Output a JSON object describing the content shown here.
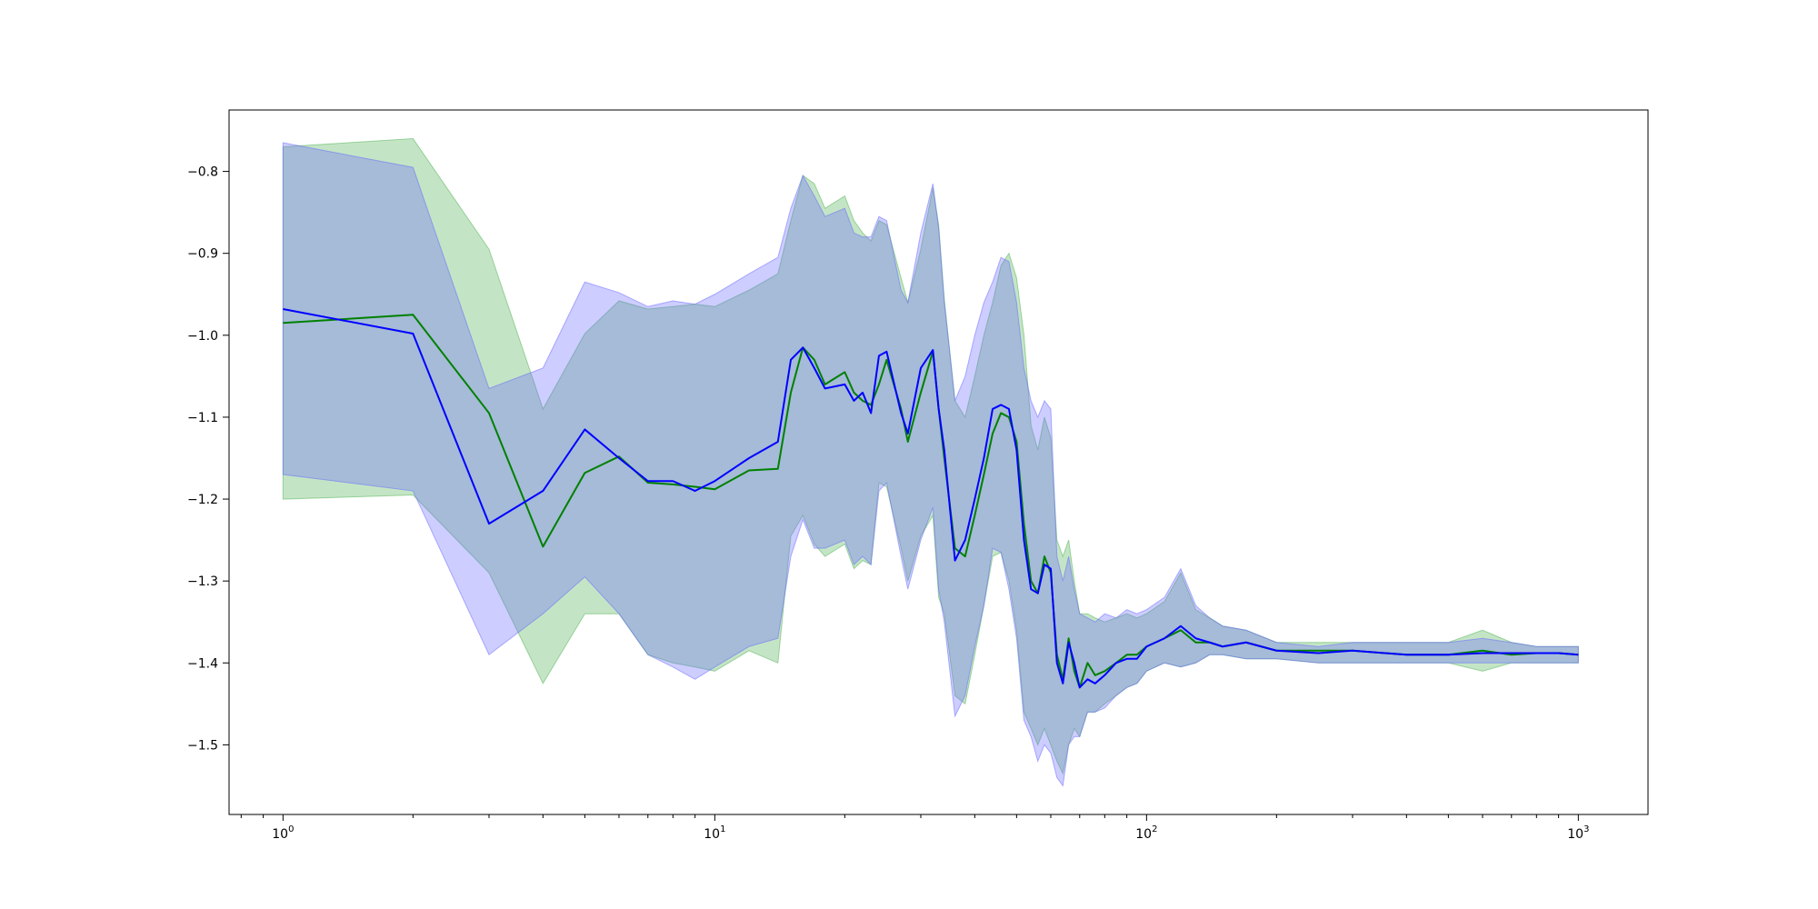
{
  "chart_data": {
    "type": "line",
    "title": "",
    "xlabel": "",
    "ylabel": "",
    "xscale": "log",
    "xlim": [
      0.75,
      1450
    ],
    "ylim": [
      -1.585,
      -0.725
    ],
    "grid": false,
    "legend": "none",
    "x_ticks": [
      {
        "base": "10",
        "exp": "0",
        "value": 1
      },
      {
        "base": "10",
        "exp": "1",
        "value": 10
      },
      {
        "base": "10",
        "exp": "2",
        "value": 100
      },
      {
        "base": "10",
        "exp": "3",
        "value": 1000
      }
    ],
    "y_ticks": [
      {
        "label": "−0.8",
        "value": -0.8
      },
      {
        "label": "−0.9",
        "value": -0.9
      },
      {
        "label": "−1.0",
        "value": -1.0
      },
      {
        "label": "−1.1",
        "value": -1.1
      },
      {
        "label": "−1.2",
        "value": -1.2
      },
      {
        "label": "−1.3",
        "value": -1.3
      },
      {
        "label": "−1.4",
        "value": -1.4
      },
      {
        "label": "−1.5",
        "value": -1.5
      }
    ],
    "series": [
      {
        "color": "#008000",
        "band_color": "#4caf50",
        "x": [
          1,
          2,
          3,
          4,
          5,
          6,
          7,
          8,
          9,
          10,
          12,
          14,
          15,
          16,
          17,
          18,
          20,
          21,
          22,
          23,
          24,
          25,
          27,
          28,
          30,
          32,
          33,
          34,
          36,
          38,
          40,
          42,
          44,
          46,
          48,
          50,
          52,
          54,
          56,
          58,
          60,
          62,
          64,
          66,
          68,
          70,
          73,
          76,
          80,
          85,
          90,
          95,
          100,
          110,
          120,
          130,
          140,
          150,
          170,
          200,
          250,
          300,
          400,
          500,
          600,
          700,
          800,
          900,
          1000
        ],
        "y": [
          -0.985,
          -0.975,
          -1.095,
          -1.258,
          -1.168,
          -1.148,
          -1.18,
          -1.182,
          -1.185,
          -1.188,
          -1.165,
          -1.163,
          -1.07,
          -1.015,
          -1.03,
          -1.06,
          -1.045,
          -1.07,
          -1.08,
          -1.085,
          -1.06,
          -1.03,
          -1.09,
          -1.13,
          -1.07,
          -1.02,
          -1.09,
          -1.15,
          -1.26,
          -1.27,
          -1.22,
          -1.17,
          -1.12,
          -1.095,
          -1.1,
          -1.13,
          -1.23,
          -1.3,
          -1.315,
          -1.27,
          -1.29,
          -1.39,
          -1.42,
          -1.37,
          -1.41,
          -1.43,
          -1.4,
          -1.415,
          -1.41,
          -1.4,
          -1.39,
          -1.39,
          -1.38,
          -1.37,
          -1.36,
          -1.375,
          -1.375,
          -1.38,
          -1.375,
          -1.385,
          -1.385,
          -1.385,
          -1.39,
          -1.39,
          -1.385,
          -1.39,
          -1.388,
          -1.388,
          -1.39
        ],
        "lower": [
          -1.2,
          -1.195,
          -1.29,
          -1.425,
          -1.34,
          -1.34,
          -1.39,
          -1.4,
          -1.405,
          -1.41,
          -1.385,
          -1.4,
          -1.245,
          -1.22,
          -1.255,
          -1.27,
          -1.255,
          -1.285,
          -1.275,
          -1.28,
          -1.18,
          -1.185,
          -1.26,
          -1.3,
          -1.245,
          -1.22,
          -1.32,
          -1.34,
          -1.44,
          -1.45,
          -1.39,
          -1.33,
          -1.27,
          -1.265,
          -1.3,
          -1.36,
          -1.46,
          -1.48,
          -1.5,
          -1.48,
          -1.5,
          -1.52,
          -1.535,
          -1.5,
          -1.48,
          -1.49,
          -1.46,
          -1.46,
          -1.45,
          -1.44,
          -1.43,
          -1.425,
          -1.41,
          -1.4,
          -1.405,
          -1.4,
          -1.39,
          -1.39,
          -1.395,
          -1.395,
          -1.4,
          -1.4,
          -1.4,
          -1.4,
          -1.41,
          -1.4,
          -1.4,
          -1.4,
          -1.4
        ],
        "upper": [
          -0.77,
          -0.76,
          -0.895,
          -1.09,
          -0.998,
          -0.958,
          -0.968,
          -0.965,
          -0.962,
          -0.965,
          -0.945,
          -0.925,
          -0.86,
          -0.805,
          -0.815,
          -0.845,
          -0.83,
          -0.86,
          -0.875,
          -0.885,
          -0.86,
          -0.865,
          -0.93,
          -0.96,
          -0.895,
          -0.82,
          -0.865,
          -0.955,
          -1.08,
          -1.1,
          -1.05,
          -1.0,
          -0.96,
          -0.915,
          -0.9,
          -0.93,
          -1.0,
          -1.11,
          -1.14,
          -1.1,
          -1.125,
          -1.25,
          -1.27,
          -1.25,
          -1.3,
          -1.34,
          -1.34,
          -1.345,
          -1.35,
          -1.345,
          -1.34,
          -1.345,
          -1.34,
          -1.325,
          -1.29,
          -1.335,
          -1.345,
          -1.355,
          -1.36,
          -1.375,
          -1.375,
          -1.375,
          -1.375,
          -1.375,
          -1.36,
          -1.375,
          -1.38,
          -1.38,
          -1.38
        ]
      },
      {
        "color": "#0000ff",
        "band_color": "#6666ff",
        "x": [
          1,
          2,
          3,
          4,
          5,
          6,
          7,
          8,
          9,
          10,
          12,
          14,
          15,
          16,
          17,
          18,
          20,
          21,
          22,
          23,
          24,
          25,
          27,
          28,
          30,
          32,
          33,
          34,
          36,
          38,
          40,
          42,
          44,
          46,
          48,
          50,
          52,
          54,
          56,
          58,
          60,
          62,
          64,
          66,
          68,
          70,
          73,
          76,
          80,
          85,
          90,
          95,
          100,
          110,
          120,
          130,
          140,
          150,
          170,
          200,
          250,
          300,
          400,
          500,
          600,
          700,
          800,
          900,
          1000
        ],
        "y": [
          -0.968,
          -0.998,
          -1.23,
          -1.19,
          -1.115,
          -1.15,
          -1.178,
          -1.178,
          -1.19,
          -1.178,
          -1.15,
          -1.13,
          -1.03,
          -1.015,
          -1.04,
          -1.065,
          -1.06,
          -1.08,
          -1.07,
          -1.095,
          -1.025,
          -1.02,
          -1.095,
          -1.12,
          -1.04,
          -1.018,
          -1.09,
          -1.14,
          -1.275,
          -1.25,
          -1.2,
          -1.15,
          -1.09,
          -1.085,
          -1.09,
          -1.14,
          -1.25,
          -1.31,
          -1.315,
          -1.28,
          -1.285,
          -1.4,
          -1.425,
          -1.375,
          -1.4,
          -1.43,
          -1.42,
          -1.425,
          -1.415,
          -1.4,
          -1.395,
          -1.395,
          -1.38,
          -1.37,
          -1.355,
          -1.37,
          -1.375,
          -1.38,
          -1.375,
          -1.385,
          -1.388,
          -1.385,
          -1.39,
          -1.39,
          -1.388,
          -1.388,
          -1.388,
          -1.388,
          -1.39
        ],
        "lower": [
          -1.17,
          -1.19,
          -1.39,
          -1.34,
          -1.295,
          -1.34,
          -1.39,
          -1.405,
          -1.42,
          -1.405,
          -1.38,
          -1.37,
          -1.27,
          -1.225,
          -1.26,
          -1.26,
          -1.25,
          -1.28,
          -1.27,
          -1.28,
          -1.19,
          -1.18,
          -1.27,
          -1.31,
          -1.25,
          -1.21,
          -1.31,
          -1.35,
          -1.465,
          -1.44,
          -1.38,
          -1.33,
          -1.26,
          -1.265,
          -1.31,
          -1.37,
          -1.47,
          -1.49,
          -1.52,
          -1.5,
          -1.51,
          -1.54,
          -1.55,
          -1.5,
          -1.49,
          -1.49,
          -1.46,
          -1.46,
          -1.455,
          -1.44,
          -1.43,
          -1.425,
          -1.41,
          -1.4,
          -1.405,
          -1.4,
          -1.39,
          -1.39,
          -1.395,
          -1.395,
          -1.4,
          -1.4,
          -1.4,
          -1.4,
          -1.4,
          -1.4,
          -1.4,
          -1.4,
          -1.4
        ],
        "upper": [
          -0.765,
          -0.795,
          -1.065,
          -1.04,
          -0.935,
          -0.948,
          -0.965,
          -0.958,
          -0.962,
          -0.95,
          -0.925,
          -0.905,
          -0.845,
          -0.805,
          -0.83,
          -0.855,
          -0.845,
          -0.875,
          -0.88,
          -0.88,
          -0.855,
          -0.86,
          -0.945,
          -0.96,
          -0.875,
          -0.815,
          -0.87,
          -0.96,
          -1.08,
          -1.05,
          -1.0,
          -0.96,
          -0.935,
          -0.905,
          -0.91,
          -0.96,
          -1.04,
          -1.08,
          -1.1,
          -1.08,
          -1.09,
          -1.27,
          -1.3,
          -1.27,
          -1.31,
          -1.34,
          -1.345,
          -1.35,
          -1.34,
          -1.345,
          -1.335,
          -1.34,
          -1.335,
          -1.32,
          -1.285,
          -1.33,
          -1.345,
          -1.355,
          -1.36,
          -1.375,
          -1.38,
          -1.375,
          -1.375,
          -1.375,
          -1.37,
          -1.375,
          -1.38,
          -1.38,
          -1.38
        ]
      }
    ]
  }
}
